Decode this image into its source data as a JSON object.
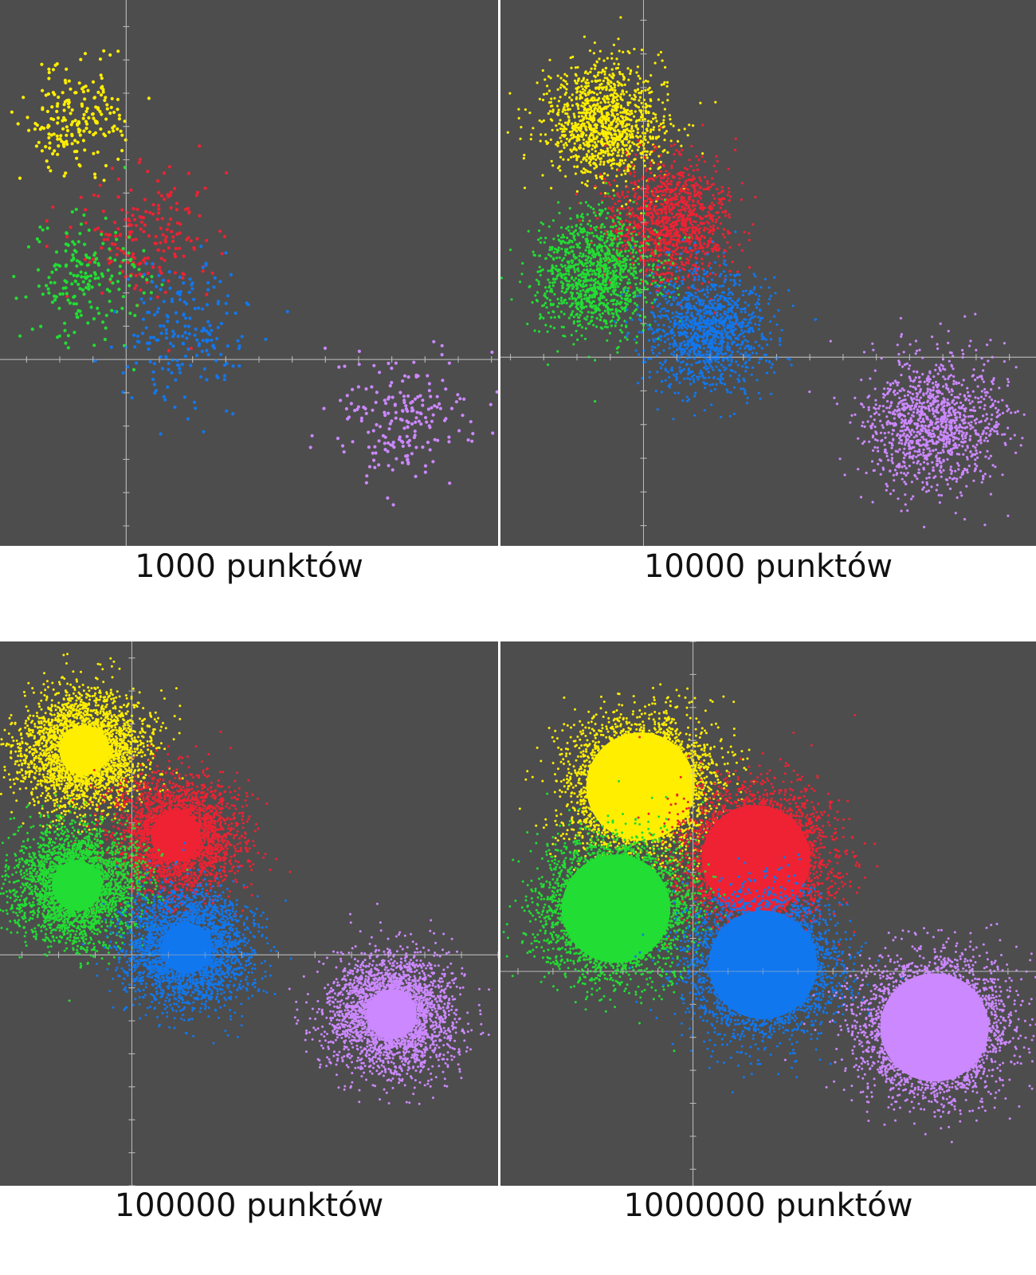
{
  "background_color": "#4d4d4d",
  "axis_color": "#b9b9b9",
  "chart_data": [
    {
      "type": "scatter",
      "caption": "1000 punktów",
      "point_count": 1000,
      "xlim": [
        -3.8,
        11.2
      ],
      "ylim": [
        -5.6,
        10.8
      ],
      "grid": false,
      "series": [
        {
          "color": "#ffee00",
          "center": [
            -1.5,
            7.2
          ],
          "spread": 0.8,
          "count": 200
        },
        {
          "color": "#ee2233",
          "center": [
            0.5,
            3.7
          ],
          "spread": 1.0,
          "count": 200
        },
        {
          "color": "#22dd33",
          "center": [
            -1.3,
            2.4
          ],
          "spread": 0.9,
          "count": 200
        },
        {
          "color": "#1177ee",
          "center": [
            1.7,
            0.8
          ],
          "spread": 1.0,
          "count": 200
        },
        {
          "color": "#cc88ff",
          "center": [
            8.3,
            -1.8
          ],
          "spread": 1.0,
          "count": 200
        }
      ]
    },
    {
      "type": "scatter",
      "caption": "10000 punktów",
      "point_count": 10000,
      "xlim": [
        -4.3,
        11.8
      ],
      "ylim": [
        -5.6,
        10.6
      ],
      "grid": false,
      "series": [
        {
          "color": "#ffee00",
          "center": [
            -1.1,
            7.0
          ],
          "spread": 0.9,
          "count": 2000
        },
        {
          "color": "#ee2233",
          "center": [
            0.8,
            4.0
          ],
          "spread": 0.9,
          "count": 2000
        },
        {
          "color": "#22dd33",
          "center": [
            -1.4,
            2.5
          ],
          "spread": 0.9,
          "count": 2000
        },
        {
          "color": "#1177ee",
          "center": [
            1.9,
            0.8
          ],
          "spread": 0.9,
          "count": 2000
        },
        {
          "color": "#cc88ff",
          "center": [
            8.7,
            -1.9
          ],
          "spread": 1.0,
          "count": 2000
        }
      ]
    },
    {
      "type": "scatter",
      "caption": "100000 punktów",
      "point_count": 100000,
      "xlim": [
        -3.6,
        10.0
      ],
      "ylim": [
        -7.0,
        9.5
      ],
      "grid": false,
      "series": [
        {
          "color": "#ffee00",
          "center": [
            -1.3,
            6.2
          ],
          "spread": 0.85,
          "count": 20000
        },
        {
          "color": "#ee2233",
          "center": [
            1.2,
            3.6
          ],
          "spread": 0.85,
          "count": 20000
        },
        {
          "color": "#22dd33",
          "center": [
            -1.5,
            2.1
          ],
          "spread": 0.85,
          "count": 20000
        },
        {
          "color": "#1177ee",
          "center": [
            1.5,
            0.2
          ],
          "spread": 0.85,
          "count": 20000
        },
        {
          "color": "#cc88ff",
          "center": [
            7.1,
            -1.8
          ],
          "spread": 0.85,
          "count": 20000
        }
      ]
    },
    {
      "type": "scatter",
      "caption": "1000000 punktów",
      "point_count": 1000000,
      "xlim": [
        -5.5,
        9.8
      ],
      "ylim": [
        -6.5,
        10.0
      ],
      "grid": false,
      "series": [
        {
          "color": "#ffee00",
          "center": [
            -1.5,
            5.6
          ],
          "spread": 1.0,
          "count": 200000
        },
        {
          "color": "#ee2233",
          "center": [
            1.8,
            3.4
          ],
          "spread": 1.0,
          "count": 200000
        },
        {
          "color": "#22dd33",
          "center": [
            -2.2,
            1.9
          ],
          "spread": 1.0,
          "count": 200000
        },
        {
          "color": "#1177ee",
          "center": [
            2.0,
            0.2
          ],
          "spread": 1.0,
          "count": 200000
        },
        {
          "color": "#cc88ff",
          "center": [
            6.9,
            -1.7
          ],
          "spread": 1.0,
          "count": 200000
        }
      ]
    }
  ]
}
